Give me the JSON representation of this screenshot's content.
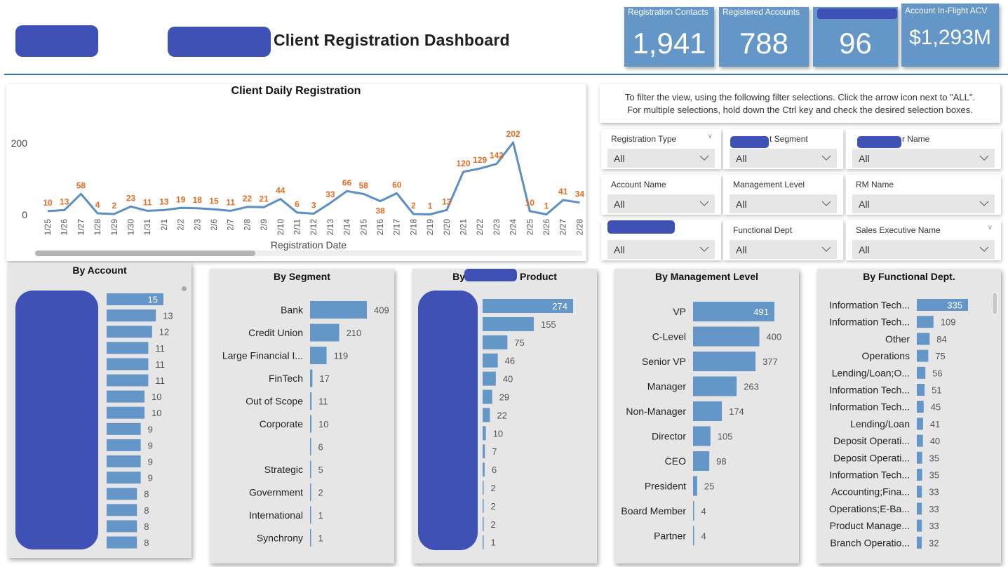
{
  "header": {
    "title": "Client Registration Dashboard"
  },
  "kpis": [
    {
      "label": "Registration Contacts",
      "value": "1,941"
    },
    {
      "label": "Registered Accounts",
      "value": "788"
    },
    {
      "label": "",
      "value": "96"
    },
    {
      "label": "Account In-Flight ACV",
      "value": "$1,293M"
    }
  ],
  "instructions": {
    "line1": "To filter the view, using the following filter selections. Click the arrow icon next to \"ALL\".",
    "line2": "For multiple selections, hold down the Ctrl key and check the desired selection boxes."
  },
  "slicers": [
    {
      "label": "Registration Type",
      "value": "All"
    },
    {
      "label": "t Segment",
      "value": "All"
    },
    {
      "label": "r Name",
      "value": "All"
    },
    {
      "label": "Account Name",
      "value": "All"
    },
    {
      "label": "Management Level",
      "value": "All"
    },
    {
      "label": "RM Name",
      "value": "All"
    },
    {
      "label": "",
      "value": "All"
    },
    {
      "label": "Functional Dept",
      "value": "All"
    },
    {
      "label": "Sales Executive Name",
      "value": "All"
    }
  ],
  "colors": {
    "bar": "#6497c8",
    "line": "#5b8ec4",
    "data_label": "#e66c23",
    "redaction": "#3f51b5",
    "kpi_bg": "#6497c8",
    "header_rule": "#2e75b6"
  },
  "chart_data": [
    {
      "type": "line",
      "title": "Client Daily Registration",
      "xlabel": "Registration Date",
      "ylabel": "",
      "yticks": [
        0,
        200
      ],
      "ylim": [
        0,
        230
      ],
      "x": [
        "1/25",
        "1/26",
        "1/27",
        "1/28",
        "1/29",
        "1/30",
        "1/31",
        "2/1",
        "2/2",
        "2/3",
        "2/6",
        "2/7",
        "2/8",
        "2/9",
        "2/10",
        "2/11",
        "2/12",
        "2/13",
        "2/14",
        "2/15",
        "2/16",
        "2/17",
        "2/18",
        "2/19",
        "2/20",
        "2/21",
        "2/22",
        "2/23",
        "2/24",
        "2/25",
        "2/26",
        "2/27",
        "2/28"
      ],
      "values": [
        10,
        13,
        58,
        4,
        2,
        23,
        11,
        13,
        19,
        18,
        15,
        11,
        22,
        21,
        44,
        6,
        3,
        33,
        66,
        58,
        38,
        60,
        2,
        1,
        13,
        120,
        129,
        142,
        202,
        10,
        1,
        41,
        34
      ]
    },
    {
      "type": "bar",
      "title": "By Account",
      "categories": [
        "",
        "",
        "",
        "",
        "",
        "",
        "",
        "",
        "",
        "",
        "",
        "",
        "",
        "",
        "",
        ""
      ],
      "values": [
        15,
        13,
        12,
        11,
        11,
        11,
        10,
        10,
        9,
        9,
        9,
        9,
        8,
        8,
        8,
        8
      ]
    },
    {
      "type": "bar",
      "title": "By Segment",
      "categories": [
        "Bank",
        "Credit Union",
        "Large Financial I...",
        "FinTech",
        "Out of Scope",
        "Corporate",
        "",
        "Strategic",
        "Government",
        "International",
        "Synchrony"
      ],
      "values": [
        409,
        210,
        119,
        17,
        11,
        10,
        6,
        5,
        2,
        1,
        1
      ]
    },
    {
      "type": "bar",
      "title_prefix": "By",
      "title_suffix": "Product",
      "categories": [
        "",
        "",
        "",
        "",
        "",
        "",
        "",
        "",
        "",
        "",
        "",
        "",
        "",
        ""
      ],
      "values": [
        274,
        155,
        75,
        46,
        40,
        29,
        22,
        10,
        7,
        6,
        2,
        2,
        2,
        1
      ]
    },
    {
      "type": "bar",
      "title": "By Management Level",
      "categories": [
        "VP",
        "C-Level",
        "Senior VP",
        "Manager",
        "Non-Manager",
        "Director",
        "CEO",
        "President",
        "Board Member",
        "Partner"
      ],
      "values": [
        491,
        400,
        377,
        263,
        174,
        105,
        98,
        25,
        4,
        4
      ]
    },
    {
      "type": "bar",
      "title": "By Functional Dept.",
      "categories": [
        "Information Tech...",
        "Information Tech...",
        "Other",
        "Operations",
        "Lending/Loan;O...",
        "Information Tech...",
        "Information Tech...",
        "Lending/Loan",
        "Deposit Operati...",
        "Deposit Operati...",
        "Information Tech...",
        "Accounting;Fina...",
        "Operations;E-Ba...",
        "Product Manage...",
        "Branch Operatio..."
      ],
      "values": [
        335,
        109,
        84,
        75,
        56,
        51,
        45,
        41,
        40,
        35,
        35,
        33,
        33,
        33,
        32
      ]
    }
  ]
}
